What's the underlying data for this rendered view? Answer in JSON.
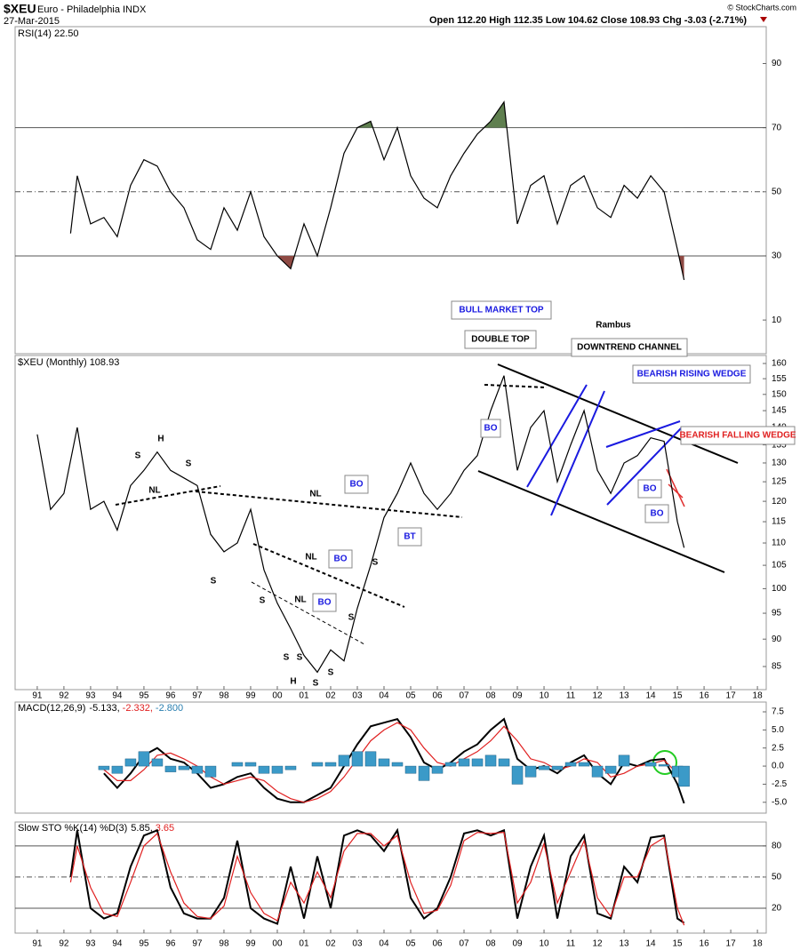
{
  "header": {
    "symbol": "$XEU",
    "name": "Euro - Philadelphia INDX",
    "date": "27-Mar-2015",
    "quote": "Open 112.20 High 112.35 Low 104.62 Close 108.93 Chg -3.03 (-2.71%)",
    "credit": "© StockCharts.com"
  },
  "chart_data": [
    {
      "type": "line",
      "title": "RSI(14) 22.50",
      "xlim": [
        1990.17,
        2018.33
      ],
      "ylim": [
        -0.5,
        101.5
      ],
      "yticks": [
        10,
        30,
        50,
        70,
        90
      ],
      "levels": [
        30,
        50,
        70
      ],
      "bands": [
        {
          "above": 70,
          "color": "#5f7f4f"
        },
        {
          "below": 30,
          "color": "#8f4a44"
        }
      ],
      "x": [
        1992.25,
        1992.5,
        1993,
        1993.5,
        1994,
        1994.5,
        1995,
        1995.5,
        1996,
        1996.5,
        1997,
        1997.5,
        1998,
        1998.5,
        1999,
        1999.5,
        2000,
        2000.5,
        2001,
        2001.5,
        2002,
        2002.5,
        2003,
        2003.5,
        2004,
        2004.5,
        2005,
        2005.5,
        2006,
        2006.5,
        2007,
        2007.5,
        2008,
        2008.5,
        2009,
        2009.5,
        2010,
        2010.5,
        2011,
        2011.5,
        2012,
        2012.5,
        2013,
        2013.5,
        2014,
        2014.5,
        2015,
        2015.25
      ],
      "series": [
        {
          "color": "#000000",
          "values": [
            37,
            55,
            40,
            42,
            36,
            52,
            60,
            58,
            50,
            45,
            35,
            32,
            45,
            38,
            50,
            36,
            30,
            26,
            40,
            30,
            45,
            62,
            70,
            72,
            60,
            70,
            55,
            48,
            45,
            55,
            62,
            68,
            72,
            78,
            40,
            52,
            55,
            40,
            52,
            55,
            45,
            42,
            52,
            48,
            55,
            50,
            32,
            22.5
          ]
        }
      ]
    },
    {
      "type": "line",
      "title": "$XEU (Monthly) 108.93",
      "log": true,
      "xlim": [
        1990.17,
        2018.33
      ],
      "ylim": [
        81,
        162.7
      ],
      "yticks": [
        85,
        90,
        95,
        100,
        105,
        110,
        115,
        120,
        125,
        130,
        135,
        140,
        145,
        150,
        155,
        160
      ],
      "xticks": [
        {
          "value": 1991,
          "label": "91"
        },
        {
          "value": 1992,
          "label": "92"
        },
        {
          "value": 1993,
          "label": "93"
        },
        {
          "value": 1994,
          "label": "94"
        },
        {
          "value": 1995,
          "label": "95"
        },
        {
          "value": 1996,
          "label": "96"
        },
        {
          "value": 1997,
          "label": "97"
        },
        {
          "value": 1998,
          "label": "98"
        },
        {
          "value": 1999,
          "label": "99"
        },
        {
          "value": 2000,
          "label": "00"
        },
        {
          "value": 2001,
          "label": "01"
        },
        {
          "value": 2002,
          "label": "02"
        },
        {
          "value": 2003,
          "label": "03"
        },
        {
          "value": 2004,
          "label": "04"
        },
        {
          "value": 2005,
          "label": "05"
        },
        {
          "value": 2006,
          "label": "06"
        },
        {
          "value": 2007,
          "label": "07"
        },
        {
          "value": 2008,
          "label": "08"
        },
        {
          "value": 2009,
          "label": "09"
        },
        {
          "value": 2010,
          "label": "10"
        },
        {
          "value": 2011,
          "label": "11"
        },
        {
          "value": 2012,
          "label": "12"
        },
        {
          "value": 2013,
          "label": "13"
        },
        {
          "value": 2014,
          "label": "14"
        },
        {
          "value": 2015,
          "label": "15"
        },
        {
          "value": 2016,
          "label": "16"
        },
        {
          "value": 2017,
          "label": "17"
        },
        {
          "value": 2018,
          "label": "18"
        }
      ],
      "x": [
        1991,
        1991.5,
        1992,
        1992.5,
        1993,
        1993.5,
        1994,
        1994.5,
        1995,
        1995.5,
        1996,
        1996.5,
        1997,
        1997.5,
        1998,
        1998.5,
        1999,
        1999.5,
        2000,
        2000.5,
        2001,
        2001.5,
        2002,
        2002.5,
        2003,
        2003.5,
        2004,
        2004.5,
        2005,
        2005.5,
        2006,
        2006.5,
        2007,
        2007.5,
        2008,
        2008.5,
        2009,
        2009.5,
        2010,
        2010.5,
        2011,
        2011.5,
        2012,
        2012.5,
        2013,
        2013.5,
        2014,
        2014.5,
        2015,
        2015.25
      ],
      "series": [
        {
          "color": "#000000",
          "values": [
            138,
            118,
            122,
            140,
            118,
            120,
            113,
            124,
            128,
            133,
            128,
            126,
            124,
            112,
            108,
            110,
            118,
            104,
            97,
            92,
            87,
            84,
            88,
            86,
            96,
            105,
            116,
            122,
            130,
            122,
            118,
            122,
            128,
            132,
            145,
            156,
            128,
            140,
            145,
            125,
            135,
            145,
            128,
            122,
            130,
            132,
            137,
            136,
            115,
            108.93
          ]
        }
      ],
      "annotations": [
        "S",
        "H",
        "S",
        "NL",
        "S",
        "NL",
        "S",
        "NL",
        "S",
        "NL",
        "S",
        "S",
        "H",
        "S",
        "S",
        "S",
        "Rambus"
      ],
      "callouts": [
        "BO",
        "BO",
        "BO",
        "BT",
        "BO",
        "BO",
        "BO",
        "BULL MARKET TOP",
        "DOUBLE TOP",
        "DOWNTREND CHANNEL",
        "BEARISH RISING WEDGE",
        "BEARISH FALLING WEDGE"
      ]
    },
    {
      "type": "line",
      "title": "MACD(12,26,9)",
      "readout": [
        "-5.133,",
        "-2.332,",
        "-2.800"
      ],
      "xlim": [
        1990.17,
        2018.33
      ],
      "ylim": [
        -6.5,
        8.85
      ],
      "yticks": [
        {
          "value": -5,
          "label": "-5.0"
        },
        -2.5,
        {
          "value": 0,
          "label": "0.0"
        },
        2.5,
        {
          "value": 5,
          "label": "5.0"
        },
        7.5
      ],
      "x": [
        1993.5,
        1994,
        1994.5,
        1995,
        1995.5,
        1996,
        1996.5,
        1997,
        1997.5,
        1998,
        1998.5,
        1999,
        1999.5,
        2000,
        2000.5,
        2001,
        2001.5,
        2002,
        2002.5,
        2003,
        2003.5,
        2004,
        2004.5,
        2005,
        2005.5,
        2006,
        2006.5,
        2007,
        2007.5,
        2008,
        2008.5,
        2009,
        2009.5,
        2010,
        2010.5,
        2011,
        2011.5,
        2012,
        2012.5,
        2013,
        2013.5,
        2014,
        2014.5,
        2015,
        2015.25
      ],
      "series": [
        {
          "color": "#000000",
          "values": [
            -1,
            -3,
            -1,
            1.5,
            2.5,
            1,
            0.5,
            -1,
            -3,
            -2.5,
            -1.5,
            -1,
            -3,
            -4.5,
            -5,
            -5,
            -4,
            -3,
            0,
            3,
            5.5,
            6,
            6.5,
            4,
            0.5,
            -0.5,
            0.5,
            2,
            3,
            5,
            6.5,
            1,
            -0.5,
            0,
            -1,
            0.5,
            1.5,
            -1,
            -2.5,
            0.5,
            0,
            0.8,
            1,
            -2.5,
            -5.133
          ]
        },
        {
          "color": "#e02020",
          "values": [
            -0.5,
            -2,
            -2,
            -0.5,
            1.5,
            1.8,
            1,
            0,
            -1.5,
            -2.5,
            -2,
            -1.5,
            -2,
            -3.5,
            -4.5,
            -5,
            -4.5,
            -3.5,
            -1.5,
            1,
            3.5,
            5,
            6,
            5,
            2.5,
            0.5,
            0,
            1,
            2,
            3.5,
            5.5,
            3.5,
            1,
            0.5,
            -0.5,
            0,
            1,
            0.5,
            -1.5,
            -1,
            0,
            0.3,
            0.8,
            -1,
            -2.332
          ]
        },
        {
          "type": "bar",
          "color": "#3b9ac8",
          "values": [
            -0.5,
            -1,
            1,
            2,
            1,
            -0.8,
            -0.5,
            -1,
            -1.5,
            0,
            0.5,
            0.5,
            -1,
            -1,
            -0.5,
            0,
            0.5,
            0.5,
            1.5,
            2,
            2,
            1,
            0.5,
            -1,
            -2,
            -1,
            0.5,
            1,
            1,
            1.5,
            1,
            -2.5,
            -1.5,
            -0.5,
            -0.5,
            0.5,
            0.5,
            -1.5,
            -1,
            1.5,
            0,
            0.5,
            0.2,
            -1.5,
            -2.8
          ]
        }
      ]
    },
    {
      "type": "line",
      "title": "Slow STO %K(14) %D(3)",
      "readout": [
        "5.85,",
        "3.65"
      ],
      "xlim": [
        1990.17,
        2018.33
      ],
      "ylim": [
        -4,
        103
      ],
      "yticks": [
        20,
        50,
        80
      ],
      "levels": [
        20,
        50,
        80
      ],
      "xticks": [
        {
          "value": 1991,
          "label": "91"
        },
        {
          "value": 1992,
          "label": "92"
        },
        {
          "value": 1993,
          "label": "93"
        },
        {
          "value": 1994,
          "label": "94"
        },
        {
          "value": 1995,
          "label": "95"
        },
        {
          "value": 1996,
          "label": "96"
        },
        {
          "value": 1997,
          "label": "97"
        },
        {
          "value": 1998,
          "label": "98"
        },
        {
          "value": 1999,
          "label": "99"
        },
        {
          "value": 2000,
          "label": "00"
        },
        {
          "value": 2001,
          "label": "01"
        },
        {
          "value": 2002,
          "label": "02"
        },
        {
          "value": 2003,
          "label": "03"
        },
        {
          "value": 2004,
          "label": "04"
        },
        {
          "value": 2005,
          "label": "05"
        },
        {
          "value": 2006,
          "label": "06"
        },
        {
          "value": 2007,
          "label": "07"
        },
        {
          "value": 2008,
          "label": "08"
        },
        {
          "value": 2009,
          "label": "09"
        },
        {
          "value": 2010,
          "label": "10"
        },
        {
          "value": 2011,
          "label": "11"
        },
        {
          "value": 2012,
          "label": "12"
        },
        {
          "value": 2013,
          "label": "13"
        },
        {
          "value": 2014,
          "label": "14"
        },
        {
          "value": 2015,
          "label": "15"
        },
        {
          "value": 2016,
          "label": "16"
        },
        {
          "value": 2017,
          "label": "17"
        },
        {
          "value": 2018,
          "label": "18"
        }
      ],
      "x": [
        1992.25,
        1992.5,
        1993,
        1993.5,
        1994,
        1994.5,
        1995,
        1995.5,
        1996,
        1996.5,
        1997,
        1997.5,
        1998,
        1998.5,
        1999,
        1999.5,
        2000,
        2000.5,
        2001,
        2001.5,
        2002,
        2002.5,
        2003,
        2003.5,
        2004,
        2004.5,
        2005,
        2005.5,
        2006,
        2006.5,
        2007,
        2007.5,
        2008,
        2008.5,
        2009,
        2009.5,
        2010,
        2010.5,
        2011,
        2011.5,
        2012,
        2012.5,
        2013,
        2013.5,
        2014,
        2014.5,
        2015,
        2015.25
      ],
      "series": [
        {
          "color": "#000000",
          "values": [
            50,
            95,
            20,
            10,
            15,
            60,
            90,
            95,
            40,
            15,
            10,
            10,
            30,
            85,
            20,
            10,
            5,
            60,
            10,
            70,
            20,
            90,
            95,
            90,
            75,
            95,
            30,
            10,
            20,
            50,
            92,
            95,
            90,
            95,
            10,
            60,
            90,
            10,
            70,
            90,
            15,
            10,
            60,
            45,
            88,
            90,
            10,
            5.85
          ]
        },
        {
          "color": "#e02020",
          "values": [
            45,
            80,
            40,
            15,
            12,
            45,
            80,
            92,
            55,
            25,
            12,
            10,
            22,
            70,
            35,
            15,
            8,
            45,
            25,
            55,
            30,
            75,
            92,
            92,
            80,
            90,
            45,
            15,
            18,
            42,
            85,
            93,
            92,
            93,
            25,
            45,
            82,
            25,
            55,
            85,
            30,
            12,
            50,
            50,
            80,
            88,
            20,
            3.65
          ]
        }
      ]
    }
  ]
}
